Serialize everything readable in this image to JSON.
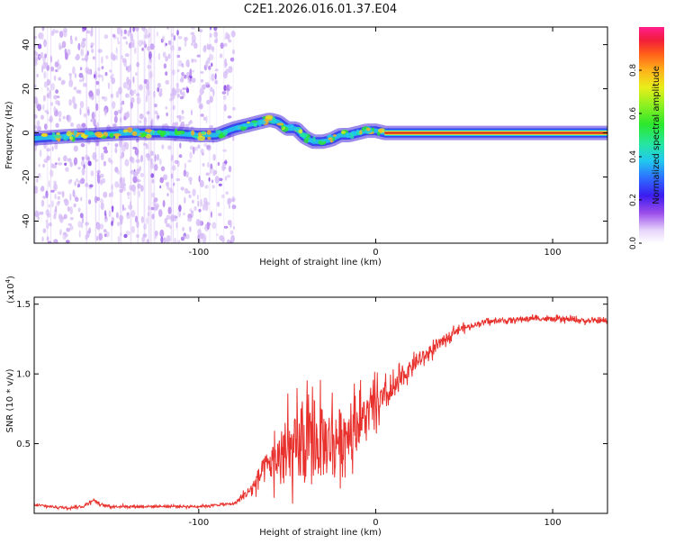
{
  "title": "C2E1.2026.016.01.37.E04",
  "colors": {
    "snr_line": "#e8302c",
    "ridge": "#ffd21c",
    "ridge_core": "#d41c1c",
    "speckle": "#b77cf0"
  },
  "chart_data": [
    {
      "type": "heatmap",
      "name": "spectrogram",
      "xlabel": "Height of straight line (km)",
      "ylabel": "Frequency (Hz)",
      "xlim": [
        -193,
        131
      ],
      "ylim": [
        -50,
        48
      ],
      "xticks": [
        -100,
        0,
        100
      ],
      "xtick_labels": [
        "-100",
        "0",
        "100"
      ],
      "yticks": [
        -40,
        -20,
        0,
        20,
        40
      ],
      "ytick_labels": [
        "-40",
        "-20",
        "0",
        "20",
        "40"
      ],
      "ridge": {
        "x": [
          -193,
          -175,
          -160,
          -150,
          -135,
          -120,
          -100,
          -90,
          -80,
          -70,
          -60,
          -55,
          -50,
          -45,
          -40,
          -35,
          -30,
          -25,
          -20,
          -15,
          -10,
          -5,
          0,
          5,
          131
        ],
        "y": [
          -2.5,
          -1.5,
          -1,
          -0.5,
          0,
          0,
          -1,
          -1,
          2,
          4,
          6,
          5,
          2,
          2,
          -2,
          -4,
          -4,
          -3,
          -1,
          -1,
          0,
          1,
          1,
          0,
          0
        ]
      },
      "speckle_x_range": [
        -193,
        -80
      ],
      "colorbar": {
        "label": "Normalized spectral amplitude",
        "range": [
          0,
          1
        ],
        "ticks": [
          0.0,
          0.2,
          0.4,
          0.6,
          0.8
        ],
        "tick_labels": [
          "0.0",
          "0.2",
          "0.4",
          "0.6",
          "0.8"
        ]
      }
    },
    {
      "type": "line",
      "name": "snr",
      "xlabel": "Height of straight line (km)",
      "ylabel": "SNR (10 * v/v)",
      "scale_label": "(x10",
      "scale_exponent": "4",
      "scale_close": ")",
      "xlim": [
        -193,
        131
      ],
      "ylim": [
        0,
        1.55
      ],
      "xticks": [
        -100,
        0,
        100
      ],
      "xtick_labels": [
        "-100",
        "0",
        "100"
      ],
      "yticks": [
        0.5,
        1.0,
        1.5
      ],
      "ytick_labels": [
        "0.5",
        "1.0",
        "1.5"
      ],
      "x": [
        -193,
        -185,
        -175,
        -165,
        -160,
        -155,
        -150,
        -140,
        -130,
        -120,
        -110,
        -100,
        -90,
        -80,
        -75,
        -70,
        -65,
        -60,
        -55,
        -50,
        -45,
        -40,
        -35,
        -30,
        -25,
        -20,
        -15,
        -10,
        -5,
        0,
        5,
        10,
        15,
        20,
        25,
        30,
        35,
        40,
        45,
        50,
        55,
        60,
        70,
        80,
        90,
        100,
        110,
        120,
        131
      ],
      "y": [
        0.06,
        0.05,
        0.04,
        0.05,
        0.1,
        0.06,
        0.05,
        0.05,
        0.05,
        0.05,
        0.05,
        0.05,
        0.06,
        0.07,
        0.12,
        0.18,
        0.28,
        0.35,
        0.4,
        0.42,
        0.45,
        0.48,
        0.5,
        0.5,
        0.52,
        0.55,
        0.6,
        0.65,
        0.7,
        0.78,
        0.82,
        0.88,
        0.97,
        1.05,
        1.1,
        1.15,
        1.2,
        1.26,
        1.31,
        1.33,
        1.35,
        1.37,
        1.38,
        1.39,
        1.4,
        1.39,
        1.39,
        1.38,
        1.38
      ],
      "noise_amp": [
        0.01,
        0.01,
        0.01,
        0.01,
        0.02,
        0.01,
        0.01,
        0.01,
        0.01,
        0.01,
        0.01,
        0.01,
        0.01,
        0.01,
        0.03,
        0.05,
        0.1,
        0.15,
        0.2,
        0.28,
        0.3,
        0.32,
        0.3,
        0.32,
        0.28,
        0.26,
        0.22,
        0.2,
        0.18,
        0.15,
        0.12,
        0.1,
        0.08,
        0.06,
        0.06,
        0.05,
        0.05,
        0.04,
        0.03,
        0.03,
        0.02,
        0.02,
        0.02,
        0.02,
        0.02,
        0.02,
        0.02,
        0.02,
        0.02
      ]
    }
  ]
}
